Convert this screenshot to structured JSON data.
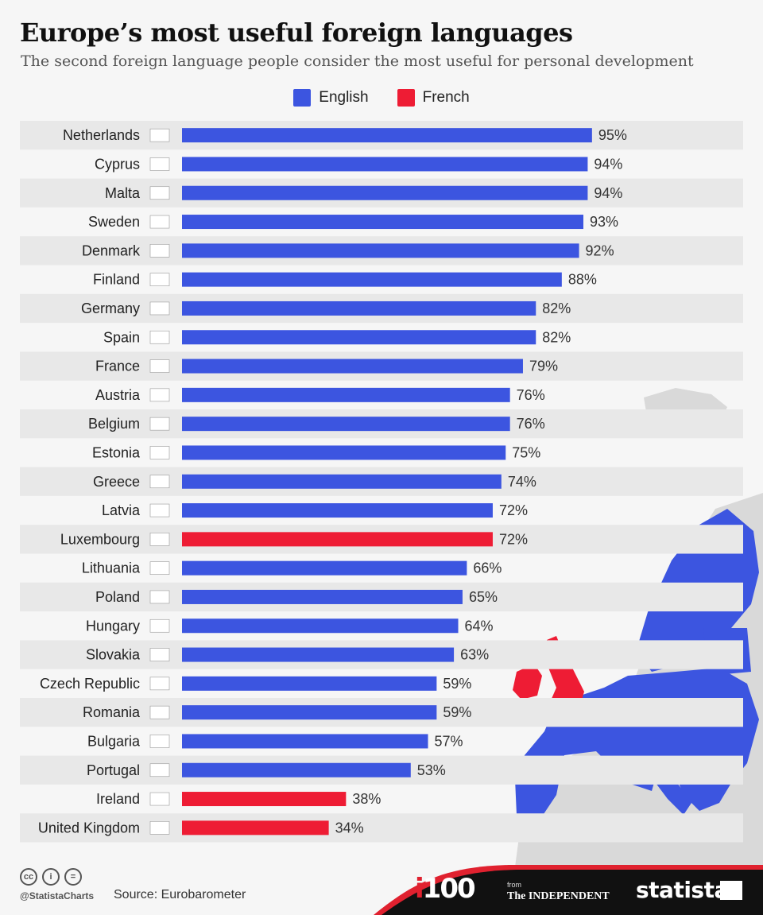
{
  "title": "Europe’s most useful foreign languages",
  "subtitle": "The second foreign language people consider the most useful for personal development",
  "legend": [
    {
      "label": "English",
      "color": "#3c55e0"
    },
    {
      "label": "French",
      "color": "#ee1c34"
    }
  ],
  "chart_data": {
    "type": "bar",
    "orientation": "horizontal",
    "title": "Europe’s most useful foreign languages",
    "subtitle": "The second foreign language people consider the most useful for personal development",
    "value_suffix": "%",
    "categories": [
      "Netherlands",
      "Cyprus",
      "Malta",
      "Sweden",
      "Denmark",
      "Finland",
      "Germany",
      "Spain",
      "France",
      "Austria",
      "Belgium",
      "Estonia",
      "Greece",
      "Latvia",
      "Luxembourg",
      "Lithuania",
      "Poland",
      "Hungary",
      "Slovakia",
      "Czech Republic",
      "Romania",
      "Bulgaria",
      "Portugal",
      "Ireland",
      "United Kingdom"
    ],
    "values": [
      95,
      94,
      94,
      93,
      92,
      88,
      82,
      82,
      79,
      76,
      76,
      75,
      74,
      72,
      72,
      66,
      65,
      64,
      63,
      59,
      59,
      57,
      53,
      38,
      34
    ],
    "language": [
      "English",
      "English",
      "English",
      "English",
      "English",
      "English",
      "English",
      "English",
      "English",
      "English",
      "English",
      "English",
      "English",
      "English",
      "French",
      "English",
      "English",
      "English",
      "English",
      "English",
      "English",
      "English",
      "English",
      "French",
      "French"
    ],
    "colors": {
      "English": "#3c55e0",
      "French": "#ee1c34"
    },
    "xlim": [
      0,
      100
    ],
    "grid": false,
    "legend_position": "top-center"
  },
  "footer": {
    "cc_icons": [
      "cc-icon",
      "by-icon",
      "nd-icon"
    ],
    "cc_symbols": [
      "cc",
      "i",
      "="
    ],
    "handle": "@StatistaCharts",
    "source": "Source: Eurobarometer",
    "brand_i100_red": "i",
    "brand_i100": "100",
    "brand_from": "from",
    "brand_independent": "The INDEPENDENT",
    "brand_statista": "statista"
  }
}
